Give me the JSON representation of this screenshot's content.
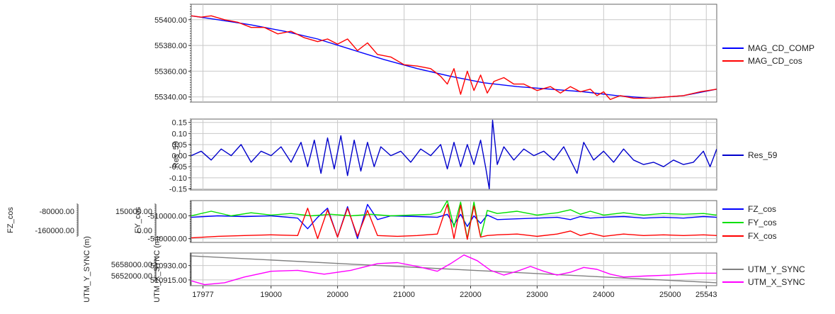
{
  "chart_data": [
    {
      "type": "line",
      "ylim": [
        55336,
        55412
      ],
      "xlim": [
        17800,
        25700
      ],
      "y_ticks": [
        "55400.00",
        "55380.00",
        "55360.00",
        "55340.00"
      ],
      "y_tick_values": [
        55400,
        55380,
        55360,
        55340
      ],
      "grid": true,
      "legend_position": "right",
      "series": [
        {
          "name": "MAG_CD_COMP",
          "color": "#0000ff",
          "x": [
            17800,
            18200,
            18700,
            19200,
            19700,
            20200,
            20700,
            21200,
            21700,
            22200,
            22700,
            23200,
            23700,
            24200,
            24700,
            25200,
            25700
          ],
          "values": [
            55403,
            55400,
            55396,
            55391,
            55385,
            55377,
            55369,
            55362,
            55356,
            55351,
            55348,
            55346,
            55344,
            55341,
            55339,
            55341,
            55346
          ]
        },
        {
          "name": "MAG_CD_cos",
          "color": "#ff0000",
          "x": [
            17800,
            17950,
            18100,
            18300,
            18500,
            18700,
            18900,
            19100,
            19300,
            19500,
            19700,
            19850,
            20000,
            20150,
            20300,
            20450,
            20600,
            20800,
            21000,
            21200,
            21400,
            21550,
            21650,
            21750,
            21850,
            21950,
            22050,
            22150,
            22250,
            22350,
            22500,
            22650,
            22800,
            23000,
            23200,
            23350,
            23500,
            23650,
            23800,
            23900,
            24000,
            24100,
            24250,
            24450,
            24700,
            24950,
            25200,
            25450,
            25700
          ],
          "values": [
            55403,
            55402,
            55403,
            55400,
            55398,
            55394,
            55394,
            55389,
            55391,
            55386,
            55383,
            55385,
            55381,
            55385,
            55376,
            55382,
            55373,
            55371,
            55365,
            55364,
            55362,
            55356,
            55350,
            55362,
            55342,
            55360,
            55345,
            55357,
            55343,
            55352,
            55355,
            55350,
            55350,
            55345,
            55348,
            55343,
            55348,
            55344,
            55346,
            55341,
            55344,
            55338,
            55341,
            55339,
            55339,
            55340,
            55341,
            55344,
            55346
          ]
        }
      ]
    },
    {
      "type": "line",
      "ylabel": "Res_59",
      "ylim": [
        -0.155,
        0.165
      ],
      "xlim": [
        17800,
        25700
      ],
      "y_ticks": [
        "0.15",
        "0.10",
        "0.05",
        "0.00",
        "-0.05",
        "-0.10",
        "-0.15"
      ],
      "y_tick_values": [
        0.15,
        0.1,
        0.05,
        0,
        -0.05,
        -0.1,
        -0.15
      ],
      "grid": true,
      "legend_position": "right",
      "series": [
        {
          "name": "Res_59",
          "color": "#0000cc",
          "x": [
            17800,
            17950,
            18100,
            18250,
            18400,
            18550,
            18700,
            18850,
            19000,
            19150,
            19300,
            19450,
            19550,
            19650,
            19750,
            19850,
            19950,
            20050,
            20150,
            20250,
            20350,
            20450,
            20550,
            20650,
            20800,
            20950,
            21100,
            21250,
            21400,
            21550,
            21650,
            21750,
            21850,
            21950,
            22050,
            22150,
            22230,
            22280,
            22330,
            22400,
            22500,
            22650,
            22800,
            22950,
            23100,
            23250,
            23400,
            23500,
            23600,
            23700,
            23850,
            24000,
            24150,
            24300,
            24450,
            24600,
            24750,
            24900,
            25050,
            25200,
            25350,
            25500,
            25600,
            25700
          ],
          "values": [
            0.0,
            0.02,
            -0.02,
            0.03,
            0.0,
            0.05,
            -0.03,
            0.02,
            0.0,
            0.04,
            -0.03,
            0.06,
            -0.05,
            0.07,
            -0.08,
            0.08,
            -0.06,
            0.09,
            -0.09,
            0.07,
            -0.07,
            0.06,
            -0.05,
            0.04,
            0.0,
            0.02,
            -0.03,
            0.03,
            0.0,
            0.05,
            -0.06,
            0.06,
            -0.05,
            0.05,
            -0.04,
            0.07,
            -0.06,
            -0.15,
            0.16,
            -0.04,
            0.04,
            -0.02,
            0.03,
            0.0,
            0.02,
            -0.02,
            0.04,
            -0.02,
            -0.08,
            0.06,
            -0.02,
            0.02,
            -0.03,
            0.03,
            -0.02,
            -0.04,
            -0.03,
            -0.05,
            -0.02,
            -0.04,
            -0.03,
            0.02,
            -0.05,
            0.03
          ]
        }
      ]
    },
    {
      "type": "line",
      "ylim": [
        -545000,
        -490000
      ],
      "xlim": [
        17800,
        25700
      ],
      "y_ticks": [
        "-510000.00",
        "-540000.00"
      ],
      "y_tick_values": [
        -510000,
        -540000
      ],
      "grid": true,
      "legend_position": "right",
      "extra_axes": [
        {
          "label": "FY_cos",
          "ticks": [
            "150000.00",
            "0.00"
          ]
        },
        {
          "label": "FZ_cos",
          "ticks": [
            "-80000.00",
            "-160000.00"
          ]
        }
      ],
      "series": [
        {
          "name": "FZ_cos",
          "color": "#0000ff",
          "x": [
            17800,
            18200,
            18600,
            19000,
            19400,
            19550,
            19700,
            19850,
            20000,
            20150,
            20300,
            20450,
            20600,
            20800,
            21200,
            21500,
            21650,
            21750,
            21850,
            21950,
            22050,
            22150,
            22250,
            22400,
            22700,
            23000,
            23300,
            23500,
            23650,
            23800,
            24000,
            24300,
            24600,
            24900,
            25200,
            25500,
            25700
          ],
          "values": [
            -512000,
            -510000,
            -511000,
            -510000,
            -513000,
            -527000,
            -512000,
            -500000,
            -538000,
            -498000,
            -540000,
            -495000,
            -515000,
            -510000,
            -511000,
            -512000,
            -508000,
            -522000,
            -508000,
            -524000,
            -510000,
            -520000,
            -509000,
            -515000,
            -514000,
            -513000,
            -512000,
            -515000,
            -511000,
            -513000,
            -512000,
            -511000,
            -513000,
            -512000,
            -513000,
            -511000,
            -512000
          ]
        },
        {
          "name": "FY_cos",
          "color": "#00e000",
          "x": [
            17800,
            18100,
            18400,
            18700,
            19000,
            19300,
            19600,
            19900,
            20200,
            20500,
            20800,
            21100,
            21400,
            21550,
            21650,
            21750,
            21850,
            21950,
            22050,
            22150,
            22250,
            22400,
            22700,
            23000,
            23300,
            23500,
            23650,
            23800,
            24000,
            24300,
            24600,
            24900,
            25200,
            25500,
            25700
          ],
          "values": [
            -510000,
            -504000,
            -510000,
            -506000,
            -509000,
            -507000,
            -510000,
            -508000,
            -510000,
            -508000,
            -510000,
            -509000,
            -508000,
            -505000,
            -490000,
            -525000,
            -492000,
            -540000,
            -492000,
            -538000,
            -503000,
            -507000,
            -504000,
            -509000,
            -506000,
            -502000,
            -508000,
            -504000,
            -509000,
            -506000,
            -509000,
            -507000,
            -508000,
            -507000,
            -509000
          ]
        },
        {
          "name": "FX_cos",
          "color": "#ff0000",
          "x": [
            17800,
            18200,
            18600,
            19000,
            19400,
            19550,
            19700,
            19850,
            20000,
            20150,
            20300,
            20450,
            20600,
            20900,
            21200,
            21500,
            21650,
            21750,
            21850,
            21950,
            22050,
            22150,
            22250,
            22400,
            22700,
            23000,
            23300,
            23500,
            23650,
            23800,
            24000,
            24300,
            24600,
            24900,
            25200,
            25500,
            25700
          ],
          "values": [
            -539000,
            -537000,
            -536000,
            -535000,
            -536000,
            -500000,
            -540000,
            -502000,
            -538000,
            -500000,
            -537000,
            -503000,
            -536000,
            -537000,
            -536000,
            -534000,
            -495000,
            -540000,
            -496000,
            -541000,
            -497000,
            -538000,
            -536000,
            -535000,
            -534000,
            -537000,
            -534000,
            -530000,
            -536000,
            -533000,
            -537000,
            -534000,
            -536000,
            -535000,
            -536000,
            -535000,
            -536000
          ]
        }
      ]
    },
    {
      "type": "line",
      "ylabel": "UTM_X_SYNC (m)",
      "ylim": [
        510909,
        510943
      ],
      "xlim": [
        17800,
        25700
      ],
      "x_ticks": [
        "17977",
        "19000",
        "20000",
        "21000",
        "22000",
        "23000",
        "24000",
        "25000",
        "25543"
      ],
      "x_tick_values": [
        17977,
        19000,
        20000,
        21000,
        22000,
        23000,
        24000,
        25000,
        25543
      ],
      "y_ticks": [
        "510930.00",
        "510915.00"
      ],
      "y_tick_values": [
        510930,
        510915
      ],
      "grid": true,
      "legend_position": "right",
      "extra_axes": [
        {
          "label": "UTM_Y_SYNC (m)",
          "ticks": [
            "5658000.00",
            "5652000.00"
          ]
        }
      ],
      "series": [
        {
          "name": "UTM_Y_SYNC",
          "color": "#808080",
          "x": [
            17800,
            25700
          ],
          "values": [
            510940,
            510912
          ]
        },
        {
          "name": "UTM_X_SYNC",
          "color": "#ff00ff",
          "x": [
            17800,
            18000,
            18300,
            18600,
            19000,
            19400,
            19800,
            20200,
            20600,
            20900,
            21200,
            21500,
            21700,
            21900,
            22100,
            22300,
            22500,
            22700,
            22900,
            23100,
            23300,
            23500,
            23700,
            23900,
            24100,
            24300,
            24600,
            25000,
            25400,
            25700
          ],
          "values": [
            510914,
            510910,
            510912,
            510918,
            510924,
            510925,
            510921,
            510925,
            510932,
            510933,
            510929,
            510924,
            510932,
            510941,
            510935,
            510925,
            510920,
            510924,
            510929,
            510924,
            510920,
            510923,
            510928,
            510926,
            510921,
            510918,
            510919,
            510920,
            510922,
            510922
          ]
        }
      ]
    }
  ]
}
